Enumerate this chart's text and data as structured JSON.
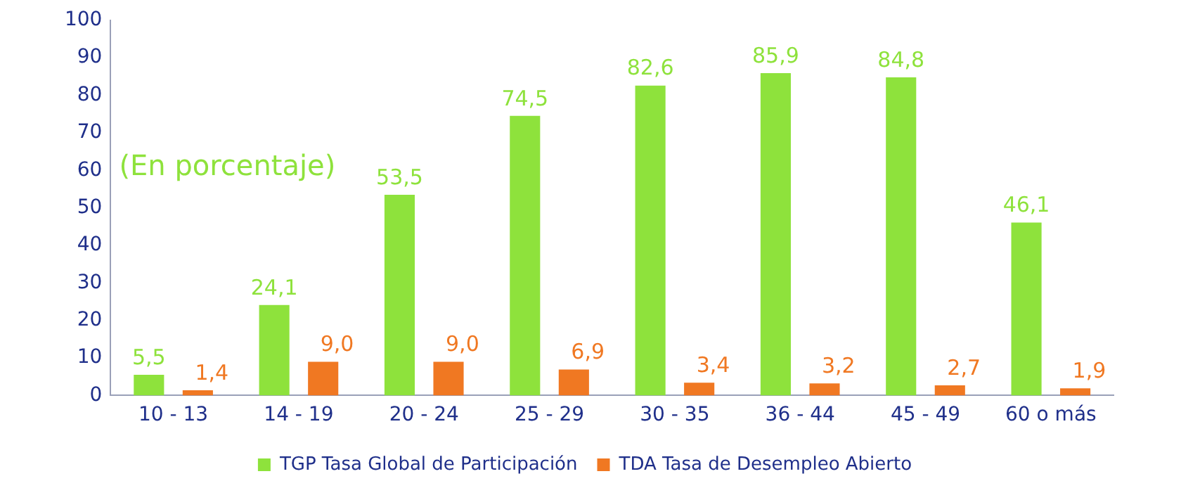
{
  "chart_data": {
    "type": "bar",
    "categories": [
      "10 - 13",
      "14 - 19",
      "20 - 24",
      "25 - 29",
      "30 - 35",
      "36 - 44",
      "45 - 49",
      "60 o más"
    ],
    "series": [
      {
        "name": "TGP Tasa Global de Participación",
        "color": "#8ee23c",
        "values": [
          5.5,
          24.1,
          53.5,
          74.5,
          82.6,
          85.9,
          84.8,
          46.1
        ],
        "value_labels": [
          "5,5",
          "24,1",
          "53,5",
          "74,5",
          "82,6",
          "85,9",
          "84,8",
          "46,1"
        ]
      },
      {
        "name": "TDA Tasa de Desempleo Abierto",
        "color": "#f07822",
        "values": [
          1.4,
          9.0,
          9.0,
          6.9,
          3.4,
          3.2,
          2.7,
          1.9
        ],
        "value_labels": [
          "1,4",
          "9,0",
          "9,0",
          "6,9",
          "3,4",
          "3,2",
          "2,7",
          "1,9"
        ]
      }
    ],
    "ylim": [
      0,
      100
    ],
    "yticks": [
      0,
      10,
      20,
      30,
      40,
      50,
      60,
      70,
      80,
      90,
      100
    ],
    "grid": false,
    "legend": "bottom",
    "annotations": [
      "(En porcentaje)"
    ]
  }
}
